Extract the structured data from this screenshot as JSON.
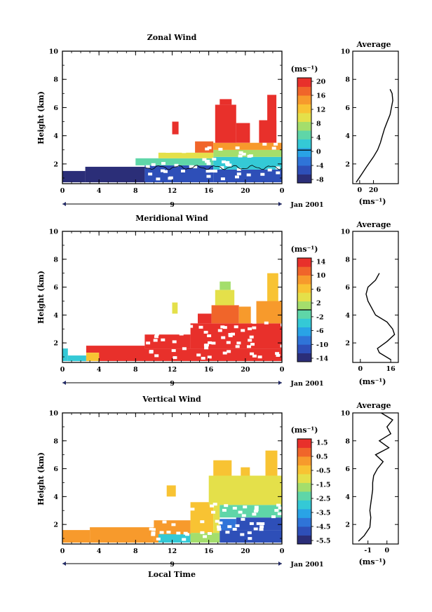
{
  "figure": {
    "x_label": "Local Time",
    "date_label": "Jan 2001",
    "day_marker": "9",
    "average_title": "Average",
    "height_label": "Height (km)",
    "colorbar_unit": "(ms⁻¹)",
    "profile_unit": "(ms⁻¹)"
  },
  "chart_data": [
    {
      "type": "heatmap",
      "title": "Zonal Wind",
      "ylabel": "Height (km)",
      "xlabel": "",
      "xlim": [
        0,
        24
      ],
      "ylim": [
        0.6,
        10
      ],
      "x_ticks": [
        "0",
        "4",
        "8",
        "12",
        "16",
        "20",
        "0"
      ],
      "y_ticks": [
        "2",
        "4",
        "6",
        "8",
        "10"
      ],
      "colorbar": {
        "ticks": [
          "20",
          "16",
          "12",
          "8",
          "4",
          "0",
          "-4",
          "-8"
        ],
        "range": [
          -10,
          22
        ],
        "zero_line": 0
      },
      "zero_contour": true,
      "regions": [
        {
          "t0": 0.0,
          "t1": 2.5,
          "h0": 0.7,
          "h1": 1.5,
          "v": -8
        },
        {
          "t0": 2.5,
          "t1": 9.0,
          "h0": 0.7,
          "h1": 1.8,
          "v": -8
        },
        {
          "t0": 9.0,
          "t1": 16.5,
          "h0": 0.7,
          "h1": 1.9,
          "v": -7
        },
        {
          "t0": 16.5,
          "t1": 24.0,
          "h0": 0.7,
          "h1": 1.6,
          "v": -6
        },
        {
          "t0": 8.0,
          "t1": 16.5,
          "h0": 1.9,
          "h1": 2.4,
          "v": 4
        },
        {
          "t0": 16.5,
          "t1": 24.0,
          "h0": 1.6,
          "h1": 2.5,
          "v": 2
        },
        {
          "t0": 10.5,
          "t1": 16.5,
          "h0": 2.4,
          "h1": 2.8,
          "v": 9
        },
        {
          "t0": 16.5,
          "t1": 24.0,
          "h0": 2.5,
          "h1": 3.0,
          "v": 8
        },
        {
          "t0": 14.5,
          "t1": 16.5,
          "h0": 2.8,
          "h1": 3.6,
          "v": 18
        },
        {
          "t0": 16.5,
          "t1": 24.0,
          "h0": 3.0,
          "h1": 3.5,
          "v": 16
        },
        {
          "t0": 12.0,
          "t1": 12.7,
          "h0": 4.1,
          "h1": 5.0,
          "v": 20
        },
        {
          "t0": 16.7,
          "t1": 19.0,
          "h0": 3.5,
          "h1": 6.2,
          "v": 21
        },
        {
          "t0": 17.2,
          "t1": 18.5,
          "h0": 6.2,
          "h1": 6.6,
          "v": 21
        },
        {
          "t0": 19.0,
          "t1": 20.5,
          "h0": 3.5,
          "h1": 4.9,
          "v": 20
        },
        {
          "t0": 21.5,
          "t1": 23.4,
          "h0": 3.5,
          "h1": 5.1,
          "v": 21
        },
        {
          "t0": 22.4,
          "t1": 23.4,
          "h0": 5.1,
          "h1": 6.9,
          "v": 21
        }
      ],
      "average_profile": {
        "xlim": [
          -10,
          56
        ],
        "x_ticks": [
          "0",
          "20"
        ],
        "height": [
          0.7,
          1.2,
          1.8,
          2.5,
          3.0,
          3.5,
          4.0,
          4.5,
          5.0,
          5.5,
          6.0,
          6.5,
          7.0,
          7.3
        ],
        "value": [
          -5,
          2,
          10,
          20,
          26,
          30,
          33,
          36,
          40,
          44,
          46,
          48,
          47,
          44
        ]
      }
    },
    {
      "type": "heatmap",
      "title": "Meridional Wind",
      "ylabel": "Height (km)",
      "xlabel": "",
      "xlim": [
        0,
        24
      ],
      "ylim": [
        0.6,
        10
      ],
      "x_ticks": [
        "0",
        "4",
        "8",
        "12",
        "16",
        "20",
        "0"
      ],
      "y_ticks": [
        "2",
        "4",
        "6",
        "8",
        "10"
      ],
      "colorbar": {
        "ticks": [
          "14",
          "10",
          "6",
          "2",
          "-2",
          "-6",
          "-10",
          "-14"
        ],
        "range": [
          -16,
          16
        ],
        "zero_line": 0
      },
      "zero_contour": false,
      "regions": [
        {
          "t0": 0.0,
          "t1": 0.6,
          "h0": 0.7,
          "h1": 1.6,
          "v": -5
        },
        {
          "t0": 0.6,
          "t1": 2.6,
          "h0": 0.7,
          "h1": 1.1,
          "v": -3
        },
        {
          "t0": 2.6,
          "t1": 4.0,
          "h0": 0.7,
          "h1": 1.3,
          "v": 6
        },
        {
          "t0": 4.0,
          "t1": 24.0,
          "h0": 0.7,
          "h1": 1.6,
          "v": 15
        },
        {
          "t0": 2.6,
          "t1": 9.0,
          "h0": 1.3,
          "h1": 1.8,
          "v": 15
        },
        {
          "t0": 9.0,
          "t1": 14.0,
          "h0": 1.6,
          "h1": 2.6,
          "v": 15
        },
        {
          "t0": 14.0,
          "t1": 24.0,
          "h0": 1.6,
          "h1": 3.4,
          "v": 15
        },
        {
          "t0": 14.8,
          "t1": 16.3,
          "h0": 3.4,
          "h1": 4.1,
          "v": 14
        },
        {
          "t0": 16.3,
          "t1": 19.3,
          "h0": 3.4,
          "h1": 4.7,
          "v": 13
        },
        {
          "t0": 16.7,
          "t1": 18.8,
          "h0": 4.7,
          "h1": 5.8,
          "v": 5
        },
        {
          "t0": 17.2,
          "t1": 18.4,
          "h0": 5.8,
          "h1": 6.4,
          "v": 0
        },
        {
          "t0": 19.3,
          "t1": 20.6,
          "h0": 3.4,
          "h1": 4.6,
          "v": 8
        },
        {
          "t0": 21.2,
          "t1": 24.0,
          "h0": 3.4,
          "h1": 5.0,
          "v": 10
        },
        {
          "t0": 22.4,
          "t1": 23.6,
          "h0": 5.0,
          "h1": 7.0,
          "v": 6
        },
        {
          "t0": 12.0,
          "t1": 12.6,
          "h0": 4.1,
          "h1": 4.9,
          "v": 5
        }
      ],
      "average_profile": {
        "xlim": [
          -4,
          20
        ],
        "x_ticks": [
          "0",
          "16"
        ],
        "height": [
          0.8,
          1.3,
          1.6,
          2.1,
          2.6,
          3.0,
          3.5,
          4.0,
          4.5,
          5.0,
          5.5,
          6.0,
          6.5,
          7.0
        ],
        "value": [
          16,
          10,
          9,
          14,
          18,
          17,
          14,
          8,
          6,
          4,
          3,
          4,
          8,
          10
        ]
      }
    },
    {
      "type": "heatmap",
      "title": "Vertical Wind",
      "ylabel": "Height (km)",
      "xlabel": "Local Time",
      "xlim": [
        0,
        24
      ],
      "ylim": [
        0.6,
        10
      ],
      "x_ticks": [
        "0",
        "4",
        "8",
        "12",
        "16",
        "20",
        "0"
      ],
      "y_ticks": [
        "2",
        "4",
        "6",
        "8",
        "10"
      ],
      "colorbar": {
        "ticks": [
          "1.5",
          "0.5",
          "-0.5",
          "-1.5",
          "-2.5",
          "-3.5",
          "-4.5",
          "-5.5"
        ],
        "range": [
          -6,
          2
        ],
        "zero_line": null
      },
      "zero_contour": false,
      "regions": [
        {
          "t0": 0.0,
          "t1": 3.0,
          "h0": 0.7,
          "h1": 1.6,
          "v": 0.3
        },
        {
          "t0": 3.0,
          "t1": 10.0,
          "h0": 0.7,
          "h1": 1.8,
          "v": 0.5
        },
        {
          "t0": 10.0,
          "t1": 14.0,
          "h0": 0.7,
          "h1": 2.3,
          "v": 0.2
        },
        {
          "t0": 10.5,
          "t1": 14.0,
          "h0": 0.7,
          "h1": 1.3,
          "v": -3.0
        },
        {
          "t0": 14.0,
          "t1": 17.2,
          "h0": 0.7,
          "h1": 1.4,
          "v": -2.0
        },
        {
          "t0": 14.0,
          "t1": 16.5,
          "h0": 1.4,
          "h1": 3.6,
          "v": -0.4
        },
        {
          "t0": 16.5,
          "t1": 17.2,
          "h0": 1.4,
          "h1": 4.0,
          "v": -1.2
        },
        {
          "t0": 17.2,
          "t1": 24.0,
          "h0": 0.7,
          "h1": 1.6,
          "v": -5.0
        },
        {
          "t0": 17.2,
          "t1": 19.0,
          "h0": 1.6,
          "h1": 2.4,
          "v": -4.2
        },
        {
          "t0": 19.0,
          "t1": 24.0,
          "h0": 1.6,
          "h1": 2.5,
          "v": -4.8
        },
        {
          "t0": 17.2,
          "t1": 24.0,
          "h0": 2.5,
          "h1": 3.4,
          "v": -2.5
        },
        {
          "t0": 16.0,
          "t1": 24.0,
          "h0": 3.4,
          "h1": 5.5,
          "v": -0.8
        },
        {
          "t0": 16.5,
          "t1": 18.5,
          "h0": 5.5,
          "h1": 6.6,
          "v": -0.4
        },
        {
          "t0": 19.5,
          "t1": 20.5,
          "h0": 5.5,
          "h1": 6.1,
          "v": -0.6
        },
        {
          "t0": 22.2,
          "t1": 23.5,
          "h0": 5.5,
          "h1": 7.3,
          "v": -0.5
        },
        {
          "t0": 11.4,
          "t1": 12.4,
          "h0": 4.0,
          "h1": 4.8,
          "v": -0.3
        }
      ],
      "average_profile": {
        "xlim": [
          -1.8,
          0.6
        ],
        "x_ticks": [
          "-1",
          "0"
        ],
        "height": [
          0.8,
          1.2,
          1.8,
          2.5,
          3.0,
          3.5,
          4.0,
          4.5,
          5.0,
          5.5,
          6.0,
          6.5,
          7.0,
          7.5,
          8.0,
          8.5,
          9.0,
          9.5,
          10.0
        ],
        "value": [
          -1.5,
          -1.2,
          -0.9,
          -0.85,
          -0.9,
          -0.85,
          -0.8,
          -0.75,
          -0.75,
          -0.7,
          -0.5,
          -0.2,
          -0.6,
          0.1,
          -0.4,
          0.2,
          0.0,
          0.3,
          -0.3
        ]
      }
    }
  ]
}
